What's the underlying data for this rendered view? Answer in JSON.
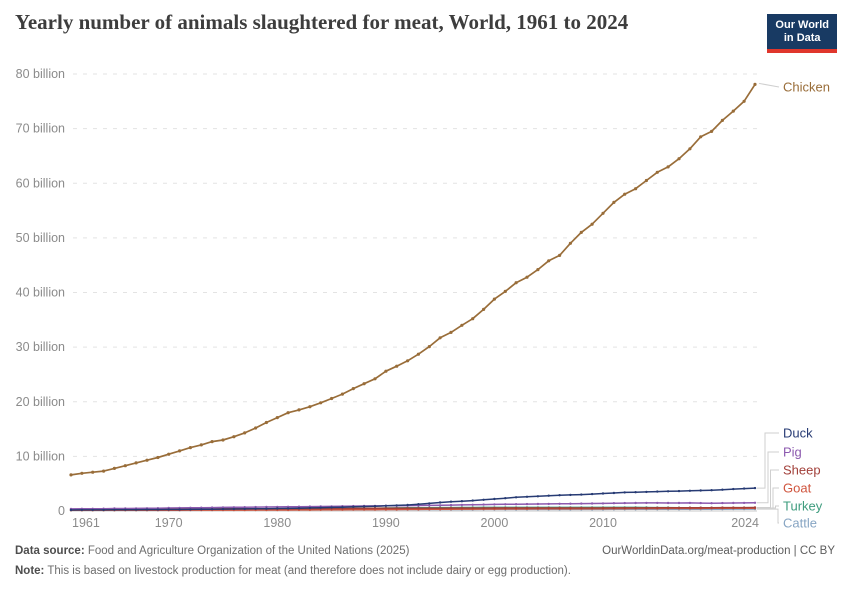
{
  "header": {
    "title": "Yearly number of animals slaughtered for meat, World, 1961 to 2024",
    "logo": {
      "line1": "Our World",
      "line2": "in Data"
    }
  },
  "footer": {
    "source_label": "Data source:",
    "source_text": " Food and Agriculture Organization of the United Nations (2025)",
    "link_text": "OurWorldinData.org/meat-production | CC BY",
    "note_label": "Note:",
    "note_text": " This is based on livestock production for meat (and therefore does not include dairy or egg production)."
  },
  "colors": {
    "grid": "#e3e3e3",
    "zero_line": "#c9c9c9",
    "axis_text": "#8b8b8b",
    "connector": "#cfcfcf",
    "title": "#3d3d3d",
    "logo_bg": "#183a63",
    "logo_red": "#e0362c"
  },
  "chart_data": {
    "type": "line",
    "title": "Yearly number of animals slaughtered for meat, World, 1961 to 2024",
    "unit": "billion animals per year",
    "xlabel": "",
    "ylabel": "",
    "ylim": [
      0,
      80
    ],
    "grid": true,
    "legend_position": "right-end-labels",
    "x_ticks": [
      1961,
      1970,
      1980,
      1990,
      2000,
      2010,
      2024
    ],
    "y_ticks": [
      {
        "value": 0,
        "label": "0"
      },
      {
        "value": 10,
        "label": "10 billion"
      },
      {
        "value": 20,
        "label": "20 billion"
      },
      {
        "value": 30,
        "label": "30 billion"
      },
      {
        "value": 40,
        "label": "40 billion"
      },
      {
        "value": 50,
        "label": "50 billion"
      },
      {
        "value": 60,
        "label": "60 billion"
      },
      {
        "value": 70,
        "label": "70 billion"
      },
      {
        "value": 80,
        "label": "80 billion"
      }
    ],
    "x": [
      1961,
      1962,
      1963,
      1964,
      1965,
      1966,
      1967,
      1968,
      1969,
      1970,
      1971,
      1972,
      1973,
      1974,
      1975,
      1976,
      1977,
      1978,
      1979,
      1980,
      1981,
      1982,
      1983,
      1984,
      1985,
      1986,
      1987,
      1988,
      1989,
      1990,
      1991,
      1992,
      1993,
      1994,
      1995,
      1996,
      1997,
      1998,
      1999,
      2000,
      2001,
      2002,
      2003,
      2004,
      2005,
      2006,
      2007,
      2008,
      2009,
      2010,
      2011,
      2012,
      2013,
      2014,
      2015,
      2016,
      2017,
      2018,
      2019,
      2020,
      2021,
      2022,
      2023,
      2024
    ],
    "series": [
      {
        "name": "Chicken",
        "color": "#996d39",
        "unit": "billion",
        "values": [
          6.6,
          6.9,
          7.1,
          7.3,
          7.8,
          8.3,
          8.8,
          9.3,
          9.8,
          10.4,
          11.0,
          11.6,
          12.1,
          12.7,
          13.0,
          13.6,
          14.3,
          15.2,
          16.2,
          17.1,
          18.0,
          18.5,
          19.1,
          19.8,
          20.6,
          21.4,
          22.4,
          23.3,
          24.2,
          25.6,
          26.5,
          27.5,
          28.7,
          30.1,
          31.7,
          32.7,
          34.0,
          35.2,
          36.9,
          38.8,
          40.2,
          41.8,
          42.8,
          44.2,
          45.8,
          46.8,
          49.0,
          51.0,
          52.5,
          54.5,
          56.5,
          58.0,
          59.0,
          60.5,
          62.0,
          63.0,
          64.5,
          66.3,
          68.5,
          69.5,
          71.5,
          73.2,
          75.0,
          78.1
        ]
      },
      {
        "name": "Duck",
        "color": "#273b74",
        "unit": "billion",
        "values": [
          0.19,
          0.2,
          0.2,
          0.21,
          0.22,
          0.23,
          0.24,
          0.25,
          0.26,
          0.27,
          0.28,
          0.3,
          0.31,
          0.33,
          0.35,
          0.37,
          0.39,
          0.41,
          0.43,
          0.45,
          0.48,
          0.52,
          0.56,
          0.6,
          0.65,
          0.7,
          0.76,
          0.82,
          0.88,
          0.95,
          1.02,
          1.1,
          1.25,
          1.4,
          1.55,
          1.7,
          1.8,
          1.9,
          2.05,
          2.2,
          2.35,
          2.5,
          2.6,
          2.7,
          2.8,
          2.9,
          2.95,
          3.0,
          3.1,
          3.2,
          3.3,
          3.4,
          3.45,
          3.5,
          3.55,
          3.6,
          3.65,
          3.7,
          3.75,
          3.8,
          3.9,
          4.0,
          4.1,
          4.2
        ]
      },
      {
        "name": "Pig",
        "color": "#8c5aaf",
        "unit": "billion",
        "values": [
          0.38,
          0.4,
          0.41,
          0.43,
          0.45,
          0.46,
          0.48,
          0.5,
          0.52,
          0.55,
          0.57,
          0.59,
          0.61,
          0.63,
          0.65,
          0.67,
          0.69,
          0.71,
          0.73,
          0.75,
          0.77,
          0.79,
          0.81,
          0.83,
          0.85,
          0.87,
          0.89,
          0.91,
          0.93,
          0.95,
          0.97,
          0.99,
          1.01,
          1.03,
          1.05,
          1.08,
          1.11,
          1.14,
          1.17,
          1.2,
          1.22,
          1.24,
          1.26,
          1.28,
          1.3,
          1.32,
          1.34,
          1.36,
          1.38,
          1.4,
          1.42,
          1.44,
          1.46,
          1.48,
          1.48,
          1.47,
          1.47,
          1.48,
          1.45,
          1.42,
          1.44,
          1.46,
          1.48,
          1.5
        ]
      },
      {
        "name": "Sheep",
        "color": "#a2403a",
        "unit": "billion",
        "values": [
          0.33,
          0.33,
          0.34,
          0.34,
          0.35,
          0.35,
          0.36,
          0.36,
          0.37,
          0.37,
          0.38,
          0.38,
          0.39,
          0.39,
          0.4,
          0.4,
          0.41,
          0.41,
          0.42,
          0.42,
          0.43,
          0.43,
          0.44,
          0.44,
          0.45,
          0.46,
          0.47,
          0.48,
          0.49,
          0.5,
          0.5,
          0.51,
          0.51,
          0.52,
          0.52,
          0.53,
          0.53,
          0.54,
          0.54,
          0.55,
          0.55,
          0.55,
          0.55,
          0.55,
          0.55,
          0.55,
          0.55,
          0.55,
          0.55,
          0.55,
          0.56,
          0.56,
          0.57,
          0.57,
          0.58,
          0.58,
          0.59,
          0.6,
          0.6,
          0.61,
          0.62,
          0.63,
          0.63,
          0.64
        ]
      },
      {
        "name": "Goat",
        "color": "#d0553e",
        "unit": "billion",
        "values": [
          0.12,
          0.12,
          0.13,
          0.13,
          0.13,
          0.14,
          0.14,
          0.14,
          0.15,
          0.15,
          0.15,
          0.16,
          0.16,
          0.16,
          0.17,
          0.17,
          0.17,
          0.18,
          0.18,
          0.18,
          0.19,
          0.2,
          0.21,
          0.22,
          0.23,
          0.24,
          0.25,
          0.26,
          0.26,
          0.27,
          0.28,
          0.29,
          0.3,
          0.31,
          0.32,
          0.33,
          0.34,
          0.35,
          0.36,
          0.37,
          0.38,
          0.38,
          0.39,
          0.4,
          0.4,
          0.41,
          0.41,
          0.42,
          0.42,
          0.43,
          0.44,
          0.44,
          0.45,
          0.46,
          0.46,
          0.47,
          0.47,
          0.48,
          0.48,
          0.5,
          0.5,
          0.51,
          0.51,
          0.51
        ]
      },
      {
        "name": "Turkey",
        "color": "#3e9c7e",
        "unit": "billion",
        "values": [
          0.13,
          0.14,
          0.14,
          0.15,
          0.15,
          0.16,
          0.17,
          0.18,
          0.19,
          0.2,
          0.21,
          0.22,
          0.23,
          0.24,
          0.25,
          0.26,
          0.27,
          0.28,
          0.29,
          0.3,
          0.32,
          0.34,
          0.36,
          0.38,
          0.4,
          0.42,
          0.44,
          0.47,
          0.51,
          0.55,
          0.57,
          0.58,
          0.6,
          0.61,
          0.62,
          0.63,
          0.64,
          0.64,
          0.65,
          0.65,
          0.66,
          0.66,
          0.65,
          0.65,
          0.65,
          0.65,
          0.66,
          0.66,
          0.65,
          0.65,
          0.66,
          0.66,
          0.65,
          0.64,
          0.63,
          0.62,
          0.61,
          0.6,
          0.6,
          0.6,
          0.58,
          0.57,
          0.56,
          0.55
        ]
      },
      {
        "name": "Cattle",
        "color": "#87a5c3",
        "unit": "billion",
        "values": [
          0.17,
          0.17,
          0.18,
          0.18,
          0.19,
          0.19,
          0.19,
          0.2,
          0.2,
          0.2,
          0.21,
          0.21,
          0.21,
          0.22,
          0.22,
          0.23,
          0.23,
          0.23,
          0.24,
          0.24,
          0.24,
          0.24,
          0.25,
          0.25,
          0.25,
          0.25,
          0.26,
          0.26,
          0.26,
          0.27,
          0.27,
          0.27,
          0.27,
          0.28,
          0.28,
          0.28,
          0.28,
          0.28,
          0.29,
          0.29,
          0.29,
          0.29,
          0.3,
          0.3,
          0.3,
          0.3,
          0.3,
          0.3,
          0.3,
          0.3,
          0.31,
          0.31,
          0.31,
          0.31,
          0.32,
          0.32,
          0.32,
          0.33,
          0.33,
          0.33,
          0.33,
          0.34,
          0.34,
          0.34
        ]
      }
    ]
  }
}
